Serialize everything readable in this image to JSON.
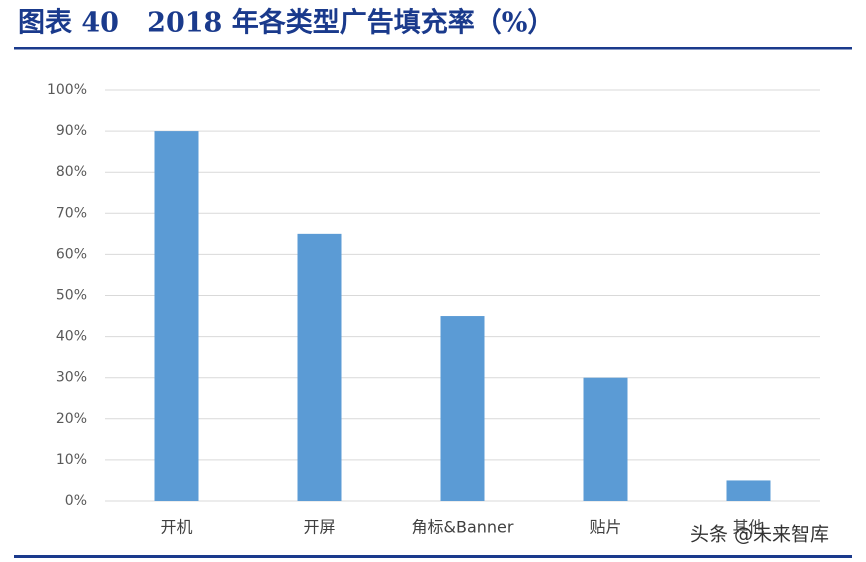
{
  "chart_data": {
    "type": "bar",
    "title": "图表 40   2018 年各类型广告填充率（%）",
    "categories": [
      "开机",
      "开屏",
      "角标&Banner",
      "贴片",
      "其他"
    ],
    "values": [
      90,
      65,
      45,
      30,
      5
    ],
    "color": "#5b9bd5",
    "ylim": [
      0,
      100
    ],
    "yticks": [
      {
        "value": 0,
        "label": "0%"
      },
      {
        "value": 10,
        "label": "10%"
      },
      {
        "value": 20,
        "label": "20%"
      },
      {
        "value": 30,
        "label": "30%"
      },
      {
        "value": 40,
        "label": "40%"
      },
      {
        "value": 50,
        "label": "50%"
      },
      {
        "value": 60,
        "label": "60%"
      },
      {
        "value": 70,
        "label": "70%"
      },
      {
        "value": 80,
        "label": "80%"
      },
      {
        "value": 90,
        "label": "90%"
      },
      {
        "value": 100,
        "label": "100%"
      }
    ],
    "grid": true,
    "watermark": "头条 @未来智库"
  }
}
